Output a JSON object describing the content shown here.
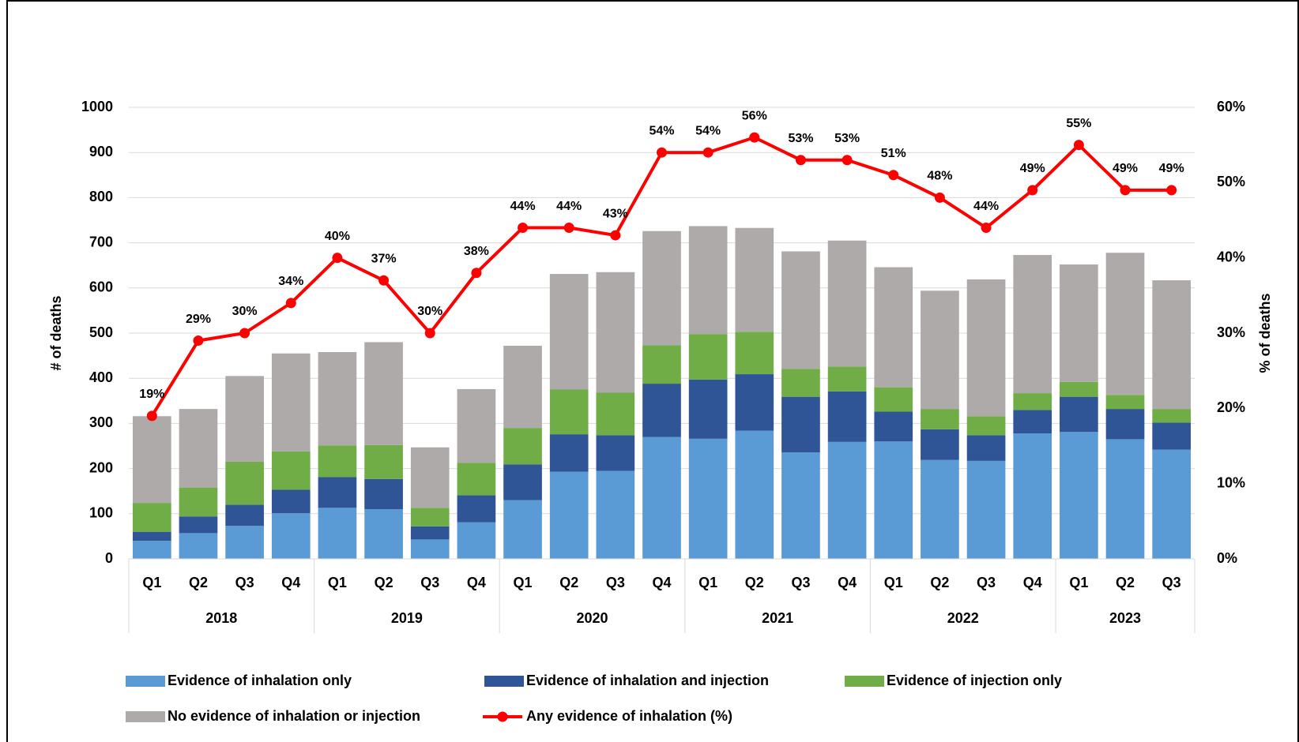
{
  "chart_data": {
    "type": "stacked_bar_line",
    "ylabel": "# of deaths",
    "y2label": "% of deaths",
    "categories": [
      "Q1",
      "Q2",
      "Q3",
      "Q4",
      "Q1",
      "Q2",
      "Q3",
      "Q4",
      "Q1",
      "Q2",
      "Q3",
      "Q4",
      "Q1",
      "Q2",
      "Q3",
      "Q4",
      "Q1",
      "Q2",
      "Q3",
      "Q4",
      "Q1",
      "Q2",
      "Q3"
    ],
    "groups": [
      {
        "label": "2018",
        "span": 4
      },
      {
        "label": "2019",
        "span": 4
      },
      {
        "label": "2020",
        "span": 4
      },
      {
        "label": "2021",
        "span": 4
      },
      {
        "label": "2022",
        "span": 4
      },
      {
        "label": "2023",
        "span": 3
      }
    ],
    "series": [
      {
        "name": "Evidence of inhalation only",
        "color": "#5b9bd5",
        "values": [
          40,
          57,
          73,
          101,
          113,
          110,
          43,
          81,
          130,
          193,
          195,
          270,
          266,
          284,
          236,
          259,
          260,
          219,
          217,
          278,
          281,
          265,
          242
        ]
      },
      {
        "name": "Evidence of inhalation and injection",
        "color": "#2f5597",
        "values": [
          20,
          37,
          47,
          52,
          68,
          67,
          29,
          60,
          79,
          83,
          79,
          118,
          131,
          125,
          123,
          112,
          66,
          68,
          57,
          52,
          78,
          67,
          60
        ]
      },
      {
        "name": "Evidence of injection only",
        "color": "#70ad47",
        "values": [
          64,
          64,
          95,
          85,
          70,
          75,
          41,
          72,
          81,
          99,
          94,
          85,
          101,
          94,
          62,
          55,
          54,
          45,
          42,
          37,
          33,
          31,
          30
        ]
      },
      {
        "name": "No evidence of inhalation or injection",
        "color": "#aeaaaa",
        "values": [
          192,
          174,
          190,
          217,
          207,
          228,
          134,
          163,
          182,
          256,
          267,
          253,
          239,
          230,
          260,
          279,
          266,
          262,
          303,
          306,
          260,
          315,
          285
        ]
      },
      {
        "name": "Any evidence of inhalation (%)",
        "color": "#ff0000",
        "axis": "y2",
        "values": [
          19,
          29,
          30,
          34,
          40,
          37,
          30,
          38,
          44,
          44,
          43,
          54,
          54,
          56,
          53,
          53,
          51,
          48,
          44,
          49,
          55,
          49,
          49
        ],
        "value_labels": [
          "19%",
          "29%",
          "30%",
          "34%",
          "40%",
          "37%",
          "30%",
          "38%",
          "44%",
          "44%",
          "43%",
          "54%",
          "54%",
          "56%",
          "53%",
          "53%",
          "51%",
          "48%",
          "44%",
          "49%",
          "55%",
          "49%",
          "49%"
        ]
      }
    ],
    "ylim": [
      0,
      1000
    ],
    "yticks": [
      0,
      100,
      200,
      300,
      400,
      500,
      600,
      700,
      800,
      900,
      1000
    ],
    "y2lim": [
      0,
      60
    ],
    "y2ticks": [
      {
        "value": 0,
        "label": "0%"
      },
      {
        "value": 10,
        "label": "10%"
      },
      {
        "value": 20,
        "label": "20%"
      },
      {
        "value": 30,
        "label": "30%"
      },
      {
        "value": 40,
        "label": "40%"
      },
      {
        "value": 50,
        "label": "50%"
      },
      {
        "value": 60,
        "label": "60%"
      }
    ],
    "grid": true,
    "legend": "bottom"
  }
}
